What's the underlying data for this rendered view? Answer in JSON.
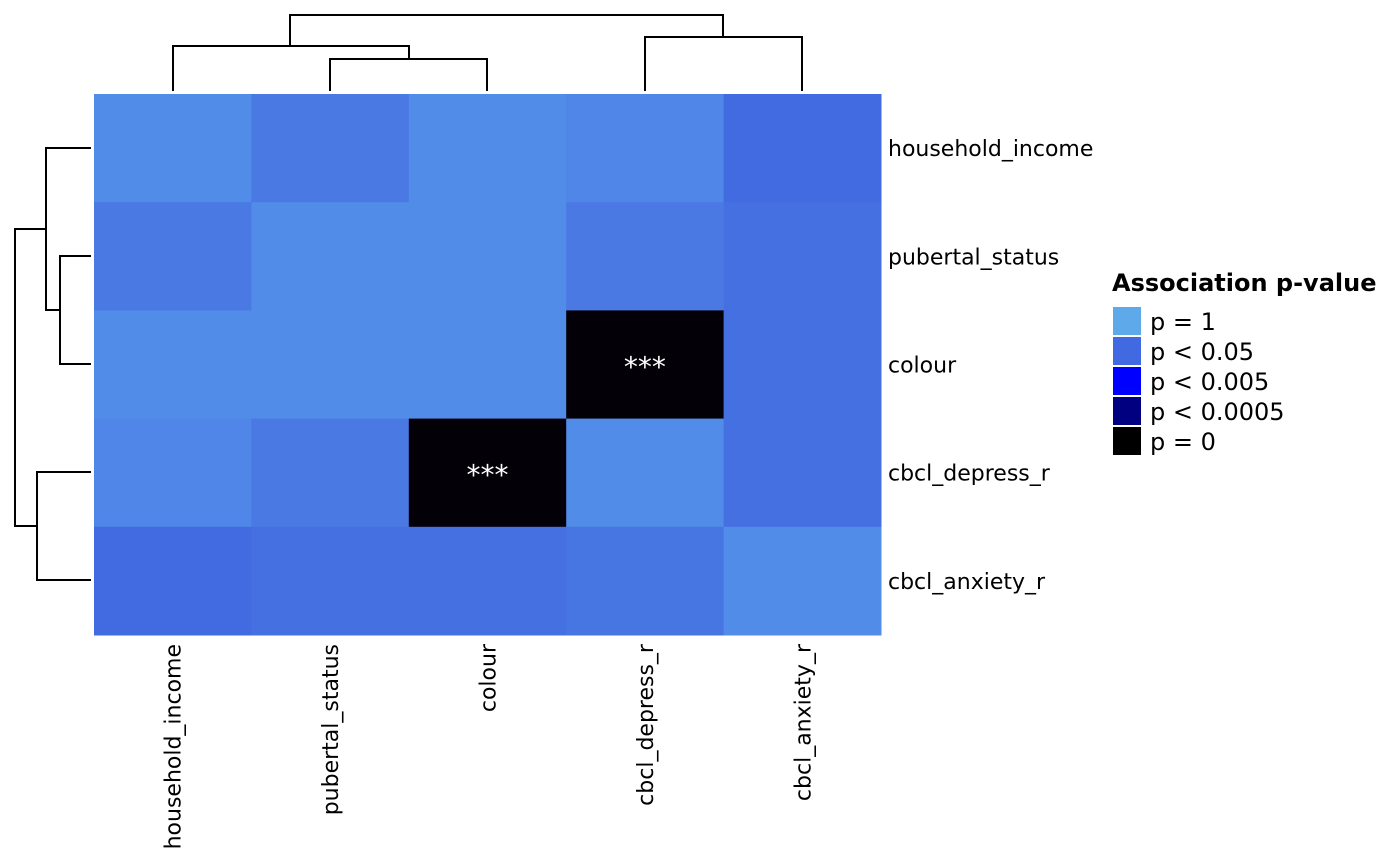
{
  "chart_data": {
    "type": "heatmap",
    "title": "",
    "xlabel": "",
    "ylabel": "",
    "columns": [
      "household_income",
      "pubertal_status",
      "colour",
      "cbcl_depress_r",
      "cbcl_anxiety_r"
    ],
    "rows": [
      "household_income",
      "pubertal_status",
      "colour",
      "cbcl_depress_r",
      "cbcl_anxiety_r"
    ],
    "cell_colors": [
      [
        "#518ce8",
        "#4a79e3",
        "#518ce8",
        "#4f86e8",
        "#436be1"
      ],
      [
        "#4a79e3",
        "#518ce8",
        "#518ce8",
        "#4a79e3",
        "#4570e2"
      ],
      [
        "#518ce8",
        "#518ce8",
        "#518ce8",
        "#030007",
        "#4570e2"
      ],
      [
        "#4f86e8",
        "#4a79e3",
        "#030007",
        "#518ce8",
        "#4570e2"
      ],
      [
        "#436be1",
        "#4570e2",
        "#4570e2",
        "#4776e3",
        "#518ce8"
      ]
    ],
    "annotations": [
      [
        "",
        "",
        "",
        "",
        ""
      ],
      [
        "",
        "",
        "",
        "",
        ""
      ],
      [
        "",
        "",
        "",
        "***",
        ""
      ],
      [
        "",
        "",
        "***",
        "",
        ""
      ],
      [
        "",
        "",
        "",
        "",
        ""
      ]
    ],
    "column_dendrogram": "((household_income,(pubertal_status,colour)),(cbcl_depress_r,cbcl_anxiety_r))",
    "row_dendrogram": "((household_income,(pubertal_status,colour)),(cbcl_depress_r,cbcl_anxiety_r))",
    "legend": {
      "title": "Association p-value",
      "placement": "right",
      "items": [
        {
          "label": "p = 1",
          "color": "#5da9ea"
        },
        {
          "label": "p < 0.05",
          "color": "#4169e1"
        },
        {
          "label": "p < 0.005",
          "color": "#0000ff"
        },
        {
          "label": "p < 0.0005",
          "color": "#000080"
        },
        {
          "label": "p = 0",
          "color": "#000000"
        }
      ]
    }
  }
}
